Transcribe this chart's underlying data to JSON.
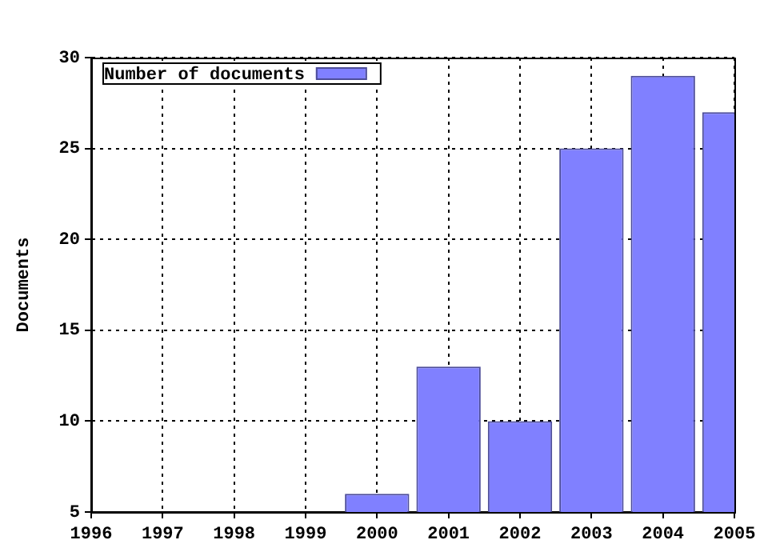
{
  "chart_data": {
    "type": "bar",
    "ylabel": "Documents",
    "x": [
      2000,
      2001,
      2002,
      2003,
      2004,
      2005
    ],
    "series": [
      {
        "name": "Number of documents",
        "color": "#8080ff",
        "values": [
          6,
          13,
          10,
          25,
          29,
          27
        ]
      }
    ],
    "xlim": [
      1996,
      2005
    ],
    "xticks": [
      1996,
      1997,
      1998,
      1999,
      2000,
      2001,
      2002,
      2003,
      2004,
      2005
    ],
    "ylim": [
      5,
      30
    ],
    "yticks": [
      5,
      10,
      15,
      20,
      25,
      30
    ],
    "grid": true,
    "legend": "top left"
  }
}
